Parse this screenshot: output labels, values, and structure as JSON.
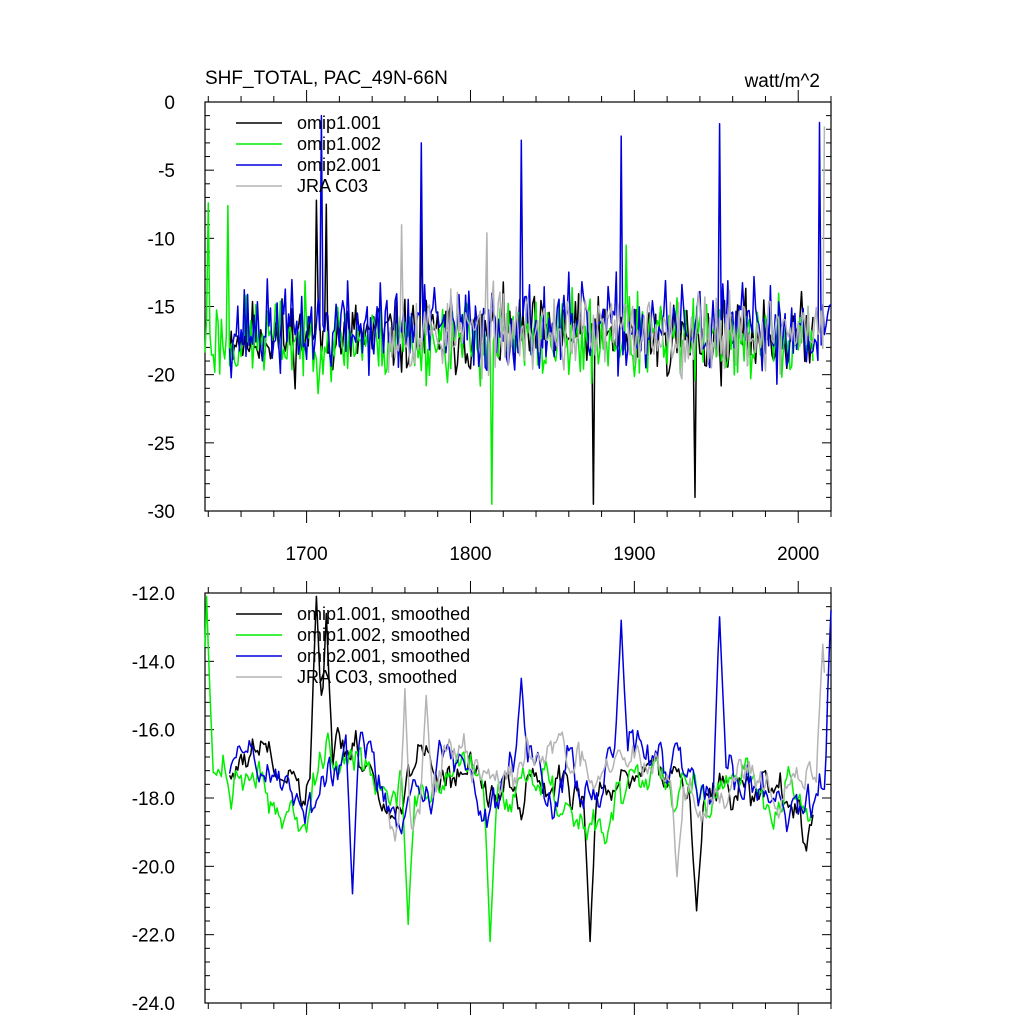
{
  "chart_data": [
    {
      "type": "line",
      "title": "SHF_TOTAL, PAC_49N-66N",
      "units": "watt/m^2",
      "xlim": [
        1638,
        2020
      ],
      "ylim": [
        -30,
        0
      ],
      "x_ticks": [
        1700,
        1800,
        1900,
        2000
      ],
      "y_ticks": [
        0,
        -5,
        -10,
        -15,
        -20,
        -25,
        -30
      ],
      "y_tick_labels": [
        "0",
        "-5",
        "-10",
        "-15",
        "-20",
        "-25",
        "-30"
      ],
      "legend_position": "top-left",
      "series": [
        {
          "name": "omip1.001",
          "color": "#000000",
          "start": 1653,
          "end": 2009,
          "base": -17.2,
          "amp": 4.2,
          "seed": 11,
          "peaks": [
            [
              1706,
              -7.2
            ],
            [
              1712,
              -7.5
            ],
            [
              1770,
              -9.0
            ],
            [
              1875,
              -29.5
            ],
            [
              1937,
              -29.0
            ]
          ]
        },
        {
          "name": "omip1.002",
          "color": "#00ee00",
          "start": 1638,
          "end": 2009,
          "base": -17.4,
          "amp": 4.6,
          "seed": 23,
          "peaks": [
            [
              1640,
              -7.4
            ],
            [
              1652,
              -7.6
            ],
            [
              1813,
              -29.5
            ],
            [
              1895,
              -10.5
            ]
          ]
        },
        {
          "name": "omip2.001",
          "color": "#0000dd",
          "start": 1653,
          "end": 2020,
          "base": -16.6,
          "amp": 4.8,
          "seed": 37,
          "peaks": [
            [
              1709,
              -1.0
            ],
            [
              1770,
              -3.0
            ],
            [
              1831,
              -2.8
            ],
            [
              1892,
              -2.5
            ],
            [
              1952,
              -1.6
            ],
            [
              2013,
              -1.5
            ]
          ]
        },
        {
          "name": "JRA C03",
          "color": "#b4b4b4",
          "start": 1750,
          "end": 2016,
          "base": -16.8,
          "amp": 4.4,
          "seed": 53,
          "peaks": [
            [
              1758,
              -9.0
            ],
            [
              1810,
              -9.6
            ],
            [
              2016,
              -1.8
            ]
          ]
        }
      ]
    },
    {
      "type": "line",
      "xlim": [
        1638,
        2020
      ],
      "ylim": [
        -24,
        -12
      ],
      "x_ticks": [
        1700,
        1800,
        1900,
        2000
      ],
      "y_ticks": [
        -12,
        -14,
        -16,
        -18,
        -20,
        -22,
        -24
      ],
      "y_tick_labels": [
        "-12.0",
        "-14.0",
        "-16.0",
        "-18.0",
        "-20.0",
        "-22.0",
        "-24.0"
      ],
      "legend_position": "top-left",
      "series": [
        {
          "name": "omip1.001, smoothed",
          "color": "#000000",
          "start": 1653,
          "end": 2009,
          "base": -17.6,
          "amp": 1.7,
          "seed": 61,
          "peaks": [
            [
              1706,
              -12.1
            ],
            [
              1712,
              -12.6
            ],
            [
              1873,
              -22.2
            ],
            [
              1938,
              -21.3
            ]
          ]
        },
        {
          "name": "omip1.002, smoothed",
          "color": "#00ee00",
          "start": 1638,
          "end": 2009,
          "base": -17.7,
          "amp": 1.8,
          "seed": 73,
          "peaks": [
            [
              1639,
              -12.1
            ],
            [
              1812,
              -22.2
            ],
            [
              1762,
              -21.7
            ]
          ]
        },
        {
          "name": "omip2.001, smoothed",
          "color": "#0000dd",
          "start": 1653,
          "end": 2020,
          "base": -17.4,
          "amp": 1.9,
          "seed": 89,
          "peaks": [
            [
              1831,
              -14.5
            ],
            [
              1892,
              -12.8
            ],
            [
              1952,
              -12.7
            ],
            [
              2020,
              -12.5
            ],
            [
              1728,
              -20.8
            ]
          ]
        },
        {
          "name": "JRA C03, smoothed",
          "color": "#b4b4b4",
          "start": 1750,
          "end": 2016,
          "base": -17.5,
          "amp": 1.6,
          "seed": 97,
          "peaks": [
            [
              1760,
              -14.8
            ],
            [
              1773,
              -15.0
            ],
            [
              1926,
              -20.3
            ],
            [
              2015,
              -13.5
            ]
          ]
        }
      ]
    }
  ]
}
